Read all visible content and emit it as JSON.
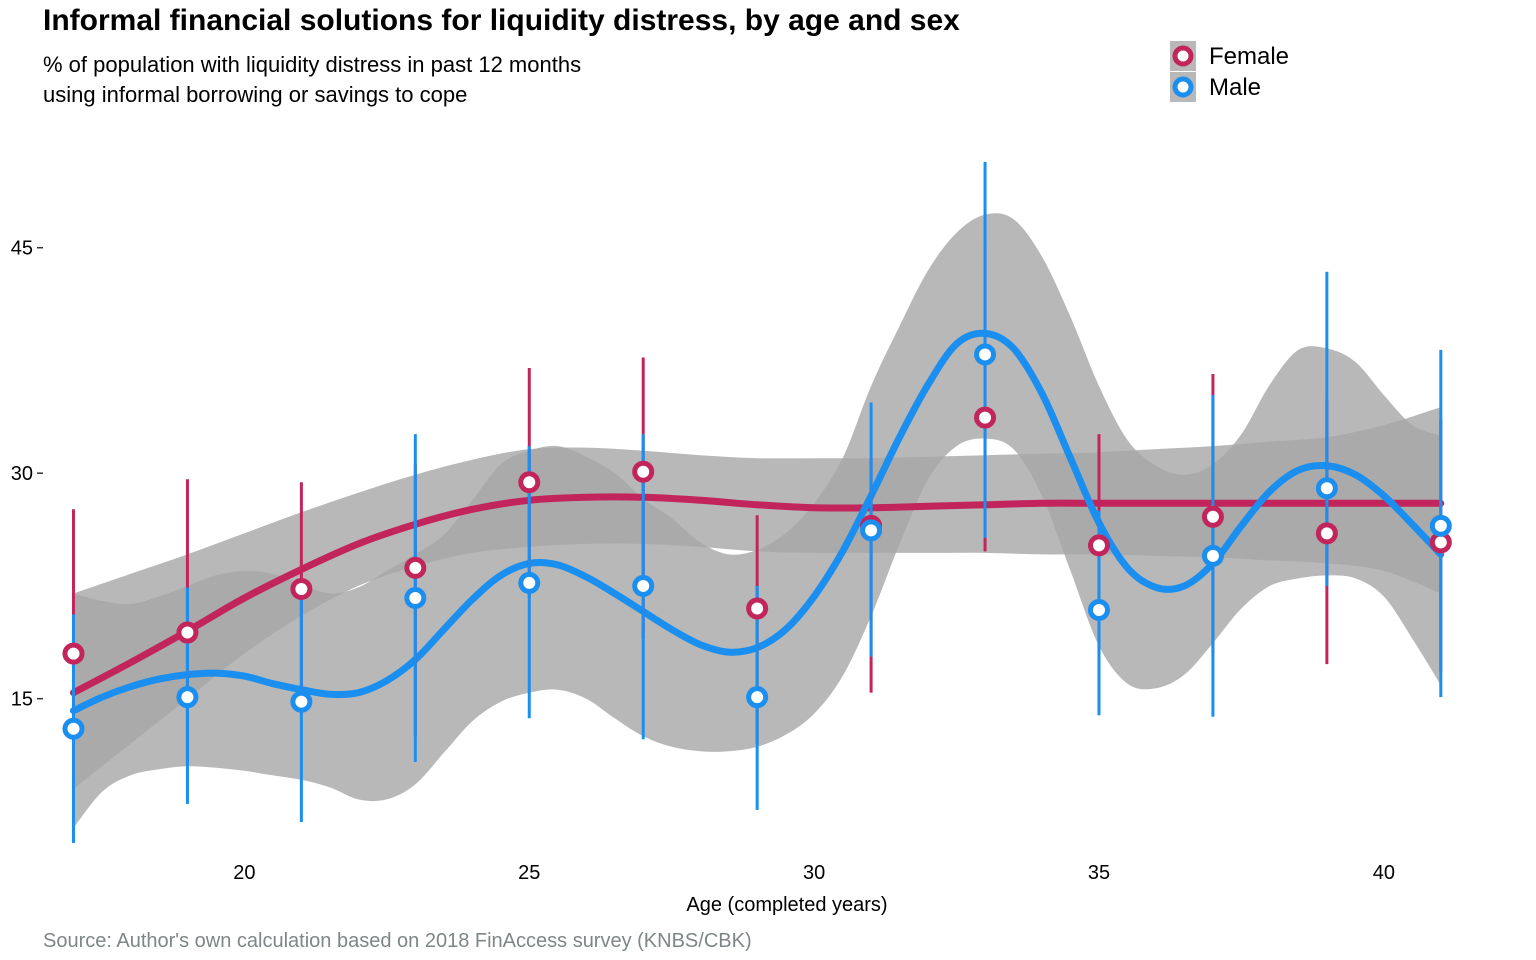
{
  "chart_data": {
    "type": "scatter",
    "title": "Informal financial solutions for liquidity distress, by age and sex",
    "subtitle_lines": [
      "% of population with liquidity distress in past 12 months",
      "using informal borrowing or savings to cope"
    ],
    "caption": "Source: Author's own calculation based on 2018 FinAccess survey (KNBS/CBK)",
    "xlabel": "Age (completed years)",
    "ylabel": "",
    "xlim": [
      16.5,
      41.6
    ],
    "ylim": [
      5.4,
      51.5
    ],
    "xticks": [
      20,
      25,
      30,
      35,
      40
    ],
    "yticks": [
      15,
      30,
      45
    ],
    "grid": false,
    "legend_position": "top-right",
    "colors": {
      "Female": "#c2255c",
      "Male": "#1b8fef",
      "band": "#a6a6a6"
    },
    "series": [
      {
        "name": "Female",
        "color": "#c2255c",
        "x": [
          17,
          19,
          21,
          23,
          25,
          27,
          29,
          31,
          33,
          35,
          37,
          39,
          41
        ],
        "y": [
          18.0,
          19.4,
          22.3,
          23.7,
          29.4,
          30.1,
          21.0,
          26.5,
          33.7,
          25.2,
          27.1,
          26.0,
          25.4
        ],
        "ci_low": [
          9.8,
          10.6,
          14.0,
          12.5,
          21.7,
          19.0,
          12.0,
          15.4,
          24.8,
          17.9,
          18.0,
          17.3,
          16.8
        ],
        "ci_high": [
          27.6,
          29.6,
          29.4,
          30.6,
          37.0,
          37.7,
          27.2,
          31.0,
          45.2,
          32.6,
          36.6,
          34.9,
          33.6
        ],
        "smooth_x": [
          17,
          18,
          19,
          20,
          21,
          22,
          23,
          24,
          25,
          26,
          27,
          28,
          29,
          30,
          31,
          32,
          33,
          34,
          35,
          36,
          37,
          38,
          39,
          40,
          41
        ],
        "smooth_y": [
          15.4,
          17.4,
          19.5,
          21.7,
          23.6,
          25.3,
          26.6,
          27.6,
          28.2,
          28.4,
          28.4,
          28.2,
          27.9,
          27.7,
          27.7,
          27.8,
          27.9,
          28.0,
          28.0,
          28.0,
          28.0,
          28.0,
          28.0,
          28.0,
          28.0
        ],
        "band_low": [
          9.0,
          12.0,
          15.0,
          18.0,
          20.5,
          22.5,
          23.8,
          24.7,
          25.1,
          25.3,
          25.3,
          25.1,
          24.8,
          24.7,
          24.7,
          24.7,
          24.7,
          24.6,
          24.6,
          24.5,
          24.4,
          24.2,
          24.0,
          23.5,
          22.0
        ],
        "band_high": [
          22.0,
          23.3,
          24.6,
          26.0,
          27.4,
          28.7,
          29.9,
          30.9,
          31.6,
          31.7,
          31.5,
          31.2,
          31.0,
          31.0,
          31.0,
          31.1,
          31.2,
          31.3,
          31.4,
          31.6,
          31.8,
          32.1,
          32.4,
          33.2,
          34.4
        ]
      },
      {
        "name": "Male",
        "color": "#1b8fef",
        "x": [
          17,
          19,
          21,
          23,
          25,
          27,
          29,
          31,
          33,
          35,
          37,
          39,
          41
        ],
        "y": [
          13.0,
          15.1,
          14.8,
          21.7,
          22.7,
          22.5,
          15.1,
          26.2,
          37.9,
          20.9,
          24.5,
          29.0,
          26.5
        ],
        "ci_low": [
          5.4,
          8.0,
          6.8,
          10.8,
          13.7,
          12.3,
          7.6,
          17.8,
          25.7,
          13.9,
          13.8,
          22.5,
          15.1
        ],
        "ci_high": [
          20.6,
          22.4,
          22.0,
          32.6,
          31.8,
          32.6,
          22.5,
          34.7,
          50.7,
          27.5,
          35.2,
          43.4,
          38.2
        ],
        "smooth_x": [
          17,
          17.5,
          18,
          18.5,
          19,
          19.5,
          20,
          20.5,
          21,
          21.5,
          22,
          22.5,
          23,
          23.5,
          24,
          24.5,
          25,
          25.5,
          26,
          26.5,
          27,
          27.5,
          28,
          28.5,
          29,
          29.5,
          30,
          30.5,
          31,
          31.5,
          32,
          32.5,
          33,
          33.5,
          34,
          34.5,
          35,
          35.5,
          36,
          36.5,
          37,
          37.5,
          38,
          38.5,
          39,
          39.5,
          40,
          40.5,
          41
        ],
        "smooth_y": [
          14.2,
          15.1,
          15.8,
          16.3,
          16.6,
          16.7,
          16.5,
          16.0,
          15.6,
          15.3,
          15.4,
          16.2,
          17.6,
          19.6,
          21.6,
          23.2,
          24.0,
          23.9,
          23.1,
          22.0,
          20.8,
          19.6,
          18.6,
          18.1,
          18.4,
          19.6,
          21.8,
          24.8,
          28.5,
          32.4,
          35.9,
          38.6,
          39.3,
          38.3,
          35.3,
          31.0,
          26.7,
          23.7,
          22.4,
          22.5,
          24.0,
          26.5,
          28.8,
          30.2,
          30.5,
          29.9,
          28.5,
          26.6,
          24.6
        ],
        "band_low": [
          6.4,
          8.8,
          9.9,
          10.3,
          10.5,
          10.4,
          10.2,
          9.9,
          9.6,
          9.1,
          8.3,
          8.3,
          9.3,
          11.4,
          13.5,
          14.8,
          15.4,
          15.6,
          15.0,
          13.7,
          12.5,
          11.8,
          11.5,
          11.5,
          11.8,
          12.6,
          14.0,
          16.5,
          20.5,
          25.3,
          29.6,
          31.8,
          32.3,
          31.6,
          28.5,
          23.5,
          18.5,
          16.0,
          15.7,
          16.6,
          18.7,
          21.0,
          22.5,
          23.0,
          23.2,
          23.0,
          21.8,
          19.0,
          15.9
        ],
        "band_high": [
          22.0,
          21.5,
          21.3,
          21.8,
          22.5,
          23.2,
          23.5,
          23.3,
          22.6,
          22.0,
          22.4,
          23.5,
          24.6,
          25.9,
          28.2,
          30.6,
          31.5,
          31.8,
          31.1,
          30.0,
          28.3,
          27.0,
          25.4,
          24.6,
          24.9,
          26.0,
          28.0,
          31.0,
          35.8,
          39.8,
          43.5,
          46.0,
          47.2,
          46.9,
          44.4,
          40.4,
          35.8,
          32.2,
          30.5,
          29.9,
          30.6,
          32.6,
          35.9,
          38.2,
          38.3,
          37.4,
          35.2,
          33.2,
          32.5
        ]
      }
    ]
  }
}
